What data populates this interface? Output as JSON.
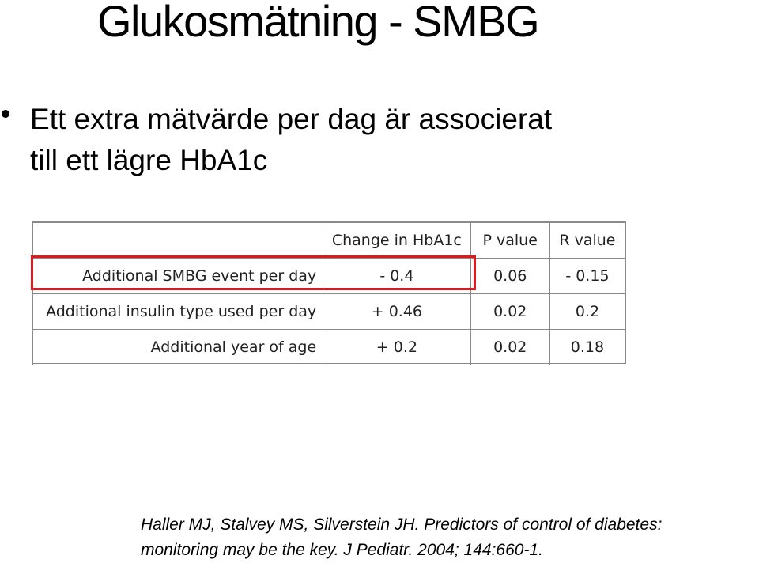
{
  "slide": {
    "title": "Glukosmätning - SMBG",
    "bullet_line1": "Ett extra mätvärde per dag är associerat",
    "bullet_line2": "till ett lägre HbA1c"
  },
  "table": {
    "headers": [
      "",
      "Change in HbA1c",
      "P value",
      "R value"
    ],
    "rows": [
      {
        "label": "Additional SMBG event per day",
        "change": "- 0.4",
        "p": "0.06",
        "r": "- 0.15",
        "highlighted": true
      },
      {
        "label": "Additional insulin type used per day",
        "change": "+ 0.46",
        "p": "0.02",
        "r": "0.2",
        "highlighted": false
      },
      {
        "label": "Additional year of age",
        "change": "+ 0.2",
        "p": "0.02",
        "r": "0.18",
        "highlighted": false
      }
    ],
    "highlight_color": "#e01a1a"
  },
  "citation": {
    "line1": "Haller MJ, Stalvey MS, Silverstein JH. Predictors of control of diabetes:",
    "line2": "monitoring may be the key. J Pediatr. 2004; 144:660-1."
  }
}
